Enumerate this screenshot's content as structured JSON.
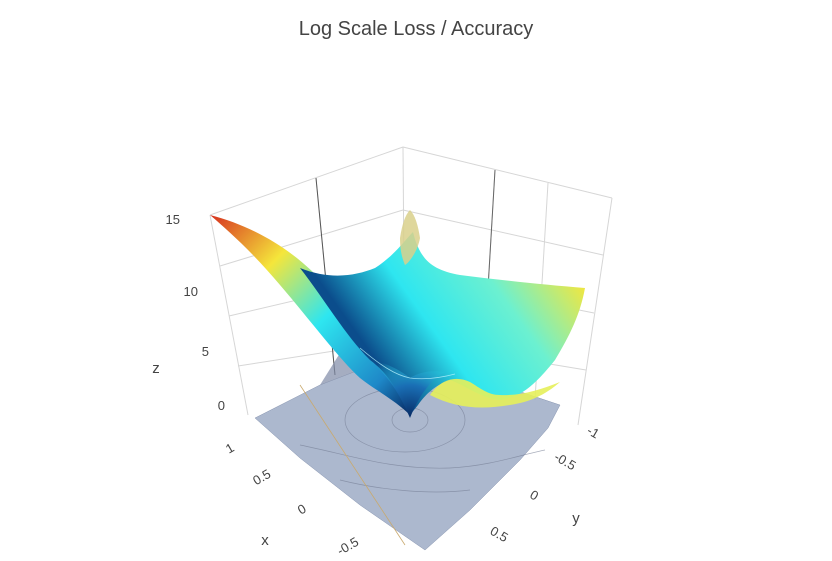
{
  "chart_data": {
    "type": "surface",
    "title": "Log Scale Loss / Accuracy",
    "xlabel": "x",
    "ylabel": "y",
    "zlabel": "z",
    "xlim": [
      -1,
      1
    ],
    "ylim": [
      -1,
      1
    ],
    "zlim": [
      0,
      15
    ],
    "x_ticks": [
      "-0.5",
      "0",
      "0.5",
      "1"
    ],
    "y_ticks": [
      "-1",
      "-0.5",
      "0",
      "0.5"
    ],
    "z_ticks": [
      "0",
      "5",
      "10",
      "15"
    ],
    "grid": true,
    "surfaces": [
      {
        "kind": "loss",
        "colorscale": "jet",
        "points": [
          {
            "x": 1,
            "y": -1,
            "z": 15
          },
          {
            "x": 0,
            "y": 0,
            "z": 0
          },
          {
            "x": 0,
            "y": -1,
            "z": 11
          },
          {
            "x": -1,
            "y": -1,
            "z": 11
          },
          {
            "x": 1,
            "y": 1,
            "z": 8
          },
          {
            "x": -1,
            "y": 1,
            "z": 2
          }
        ]
      },
      {
        "kind": "accuracy",
        "color": "#9eabc5",
        "level": "flat, near z = 0"
      }
    ],
    "colors": {
      "high": "#d7301f",
      "mid_high": "#f5e63b",
      "mid": "#2ee6f0",
      "low": "#08306b",
      "accuracy_surface": "#9eabc5"
    }
  }
}
